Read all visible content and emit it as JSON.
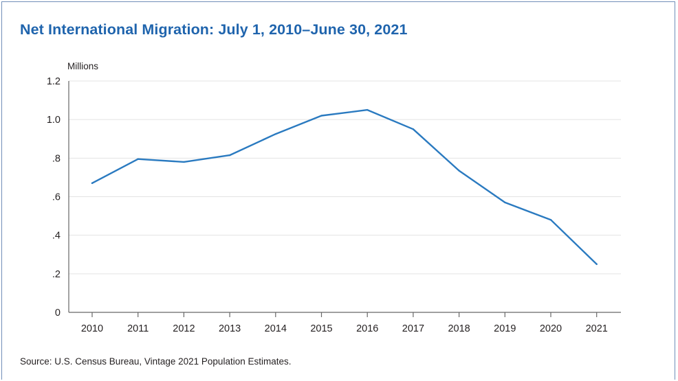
{
  "title": "Net International Migration: July 1, 2010–June 30, 2021",
  "source": "Source: U.S. Census Bureau, Vintage 2021 Population Estimates.",
  "colors": {
    "title": "#1f64ad",
    "line": "#2a7ac0",
    "grid": "#e3e3e3",
    "axis": "#666666",
    "frame": "#6f8db8",
    "text": "#231f20"
  },
  "chart_data": {
    "type": "line",
    "title": "Net International Migration: July 1, 2010–June 30, 2021",
    "ylabel": "Millions",
    "xlabel": "",
    "x": [
      "2010",
      "2011",
      "2012",
      "2013",
      "2014",
      "2015",
      "2016",
      "2017",
      "2018",
      "2019",
      "2020",
      "2021"
    ],
    "series": [
      {
        "values": [
          0.67,
          0.795,
          0.78,
          0.815,
          0.925,
          1.02,
          1.05,
          0.95,
          0.735,
          0.57,
          0.48,
          0.25
        ]
      }
    ],
    "ylim": [
      0,
      1.2
    ],
    "yticks": [
      0,
      0.2,
      0.4,
      0.6,
      0.8,
      1.0,
      1.2
    ],
    "ytick_labels": [
      "0",
      ".2",
      ".4",
      ".6",
      ".8",
      "1.0",
      "1.2"
    ],
    "grid": true,
    "legend": "none"
  }
}
